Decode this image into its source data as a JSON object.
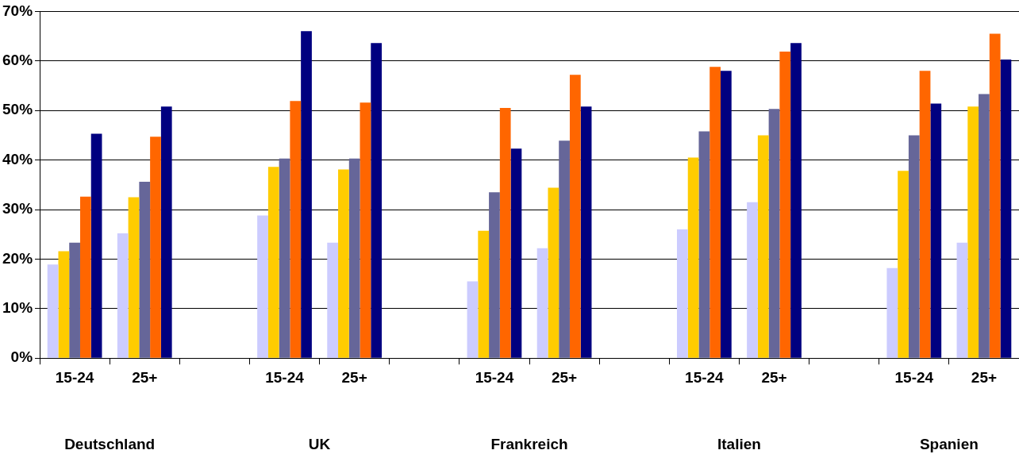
{
  "chart_data": {
    "type": "bar",
    "categories": [
      "15-24",
      "25+",
      null,
      "15-24",
      "25+",
      null,
      "15-24",
      "25+",
      null,
      "15-24",
      "25+",
      null,
      "15-24",
      "25+"
    ],
    "series": [
      {
        "color": "#ccccff",
        "values": [
          18.9,
          25.2,
          null,
          28.8,
          23.3,
          null,
          15.5,
          22.2,
          null,
          26.0,
          31.5,
          null,
          18.2,
          23.3
        ]
      },
      {
        "color": "#ffcc00",
        "values": [
          21.6,
          32.5,
          null,
          38.6,
          38.1,
          null,
          25.7,
          34.4,
          null,
          40.5,
          45.0,
          null,
          37.8,
          50.8
        ]
      },
      {
        "color": "#666699",
        "values": [
          23.3,
          35.6,
          null,
          40.3,
          40.3,
          null,
          33.5,
          43.9,
          null,
          45.8,
          50.3,
          null,
          45.0,
          53.3
        ]
      },
      {
        "color": "#ff6600",
        "values": [
          32.6,
          44.7,
          null,
          51.9,
          51.6,
          null,
          50.5,
          57.2,
          null,
          58.8,
          61.9,
          null,
          58.0,
          65.5
        ]
      },
      {
        "color": "#000080",
        "values": [
          45.3,
          50.8,
          null,
          66.0,
          63.6,
          null,
          42.3,
          50.8,
          null,
          58.0,
          63.6,
          null,
          51.4,
          60.3
        ]
      }
    ],
    "ylim": [
      0,
      70
    ],
    "yticks": [
      {
        "value": 0,
        "label": "0%"
      },
      {
        "value": 10,
        "label": "10%"
      },
      {
        "value": 20,
        "label": "20%"
      },
      {
        "value": 30,
        "label": "30%"
      },
      {
        "value": 40,
        "label": "40%"
      },
      {
        "value": 50,
        "label": "50%"
      },
      {
        "value": 60,
        "label": "60%"
      },
      {
        "value": 70,
        "label": "70%"
      }
    ],
    "grid": "y",
    "legend": false,
    "annotations": [
      "Deutschland",
      "UK",
      "Frankreich",
      "Italien",
      "Spanien"
    ]
  }
}
